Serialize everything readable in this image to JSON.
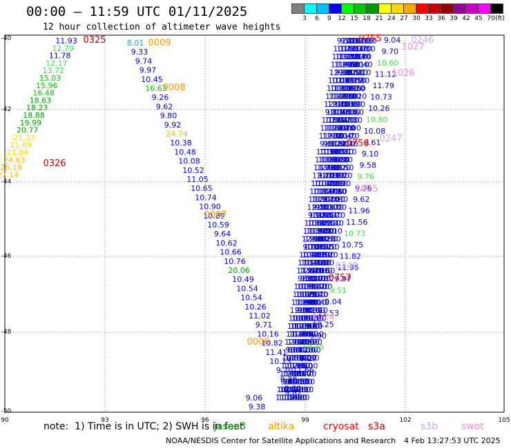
{
  "title": "00:00 – 11:59 UTC 01/11/2025",
  "subtitle": "12 hour collection of altimeter wave heights",
  "colorbar": {
    "unit": "(ft)",
    "colors": [
      "#808080",
      "#00ffff",
      "#00bfff",
      "#0000ff",
      "#00ff00",
      "#00c800",
      "#009600",
      "#ffff00",
      "#ffd700",
      "#ffa500",
      "#ff0000",
      "#c80000",
      "#960000",
      "#960096",
      "#c800c8",
      "#ff00ff",
      "#000000"
    ],
    "labels": [
      "3",
      "6",
      "9",
      "12",
      "15",
      "18",
      "21",
      "24",
      "27",
      "30",
      "33",
      "36",
      "39",
      "42",
      "45",
      "70"
    ]
  },
  "axes": {
    "lon_labels": [
      "90",
      "93",
      "96",
      "99",
      "102",
      "105"
    ],
    "lat_labels": [
      "-40",
      "-42",
      "-44",
      "-46",
      "-48",
      "-50"
    ]
  },
  "passes": [
    {
      "time": "0325",
      "color": "#b40000"
    },
    {
      "time": "0326",
      "color": "#b40000"
    },
    {
      "time": "0009",
      "color": "#ff9900"
    },
    {
      "time": "0008",
      "color": "#ff9900"
    },
    {
      "time": "0007",
      "color": "#ff9900"
    },
    {
      "time": "0006",
      "color": "#ff9900"
    },
    {
      "time": "0755",
      "color": "#ff0000"
    },
    {
      "time": "0757",
      "color": "#ff0000"
    },
    {
      "time": "0756",
      "color": "#ff0000"
    },
    {
      "time": "0246",
      "color": "#c8aaf0"
    },
    {
      "time": "0247",
      "color": "#c8aaf0"
    },
    {
      "time": "0248",
      "color": "#c8aaf0"
    },
    {
      "time": "1027",
      "color": "#ff88dd"
    },
    {
      "time": "1026",
      "color": "#ff88dd"
    },
    {
      "time": "1025",
      "color": "#ff88dd"
    },
    {
      "time": "1024",
      "color": "#ff88dd"
    }
  ],
  "values_left_track": [
    "11.93",
    "12.79",
    "11.78",
    "12.17",
    "13.72",
    "15.03",
    "15.96",
    "16.48",
    "18.63",
    "18.23",
    "18.88",
    "19.99",
    "20.77",
    "21.33",
    "21.69",
    "21.84",
    "24.63",
    "26.18",
    "27.14"
  ],
  "values_middle_track": [
    "8.01",
    "9.33",
    "9.74",
    "9.97",
    "10.45",
    "16.63",
    "9.26",
    "9.62",
    "9.80",
    "9.92",
    "24.74",
    "10.38",
    "10.48",
    "10.08",
    "10.52",
    "11.05",
    "10.65",
    "10.74",
    "10.90",
    "10.89",
    "10.59",
    "9.64",
    "10.62",
    "10.66",
    "10.76",
    "20.06",
    "10.49",
    "10.54",
    "10.54",
    "10.26",
    "11.02",
    "9.71",
    "10.16",
    "10.82",
    "11.41",
    "10.13",
    "9.70",
    "9.28",
    "9.09",
    "9.06",
    "9.38"
  ],
  "values_right_misc": [
    "9.04",
    "9.70",
    "10.60",
    "11.12",
    "11.79",
    "10.73",
    "10.26",
    "10.80",
    "10.08",
    "9.61",
    "9.10",
    "9.58",
    "9.76",
    "9.36",
    "9.62",
    "11.96",
    "11.56",
    "10.73",
    "10.75",
    "11.82",
    "11.95",
    "9.97",
    "9.51",
    "9.04",
    "11.53",
    "10.25",
    "9.90",
    "10.45",
    "9.27",
    "11.66",
    "10.33",
    "9.82"
  ],
  "note": "note:  1) Time is in UTC; 2) SWH is in feet",
  "satellites": [
    {
      "name": "jason3",
      "color": "#00a000"
    },
    {
      "name": "altika",
      "color": "#ff9900"
    },
    {
      "name": "cryosat",
      "color": "#ff0000"
    },
    {
      "name": "s3a",
      "color": "#b40000"
    },
    {
      "name": "s3b",
      "color": "#c8aaf0"
    },
    {
      "name": "swot",
      "color": "#ff88dd"
    }
  ],
  "credit": "NOAA/NESDIS Center for Satellite Applications and Research",
  "timestamp": "4 Feb 13:27:53 UTC 2025"
}
